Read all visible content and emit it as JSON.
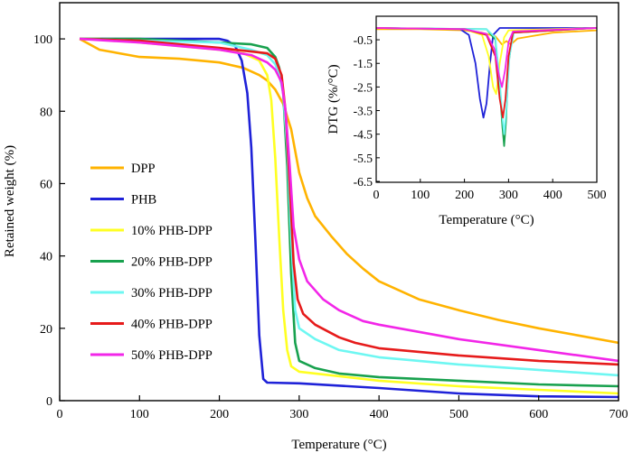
{
  "chart_data": [
    {
      "type": "line",
      "xlabel": "Temperature (°C)",
      "ylabel": "Retained weight (%)",
      "xlim": [
        0,
        700
      ],
      "ylim": [
        0,
        110
      ],
      "xticks": [
        "0",
        "100",
        "200",
        "300",
        "400",
        "500",
        "600",
        "700"
      ],
      "yticks": [
        "0",
        "20",
        "40",
        "60",
        "80",
        "100"
      ],
      "grid": false,
      "legend": "left",
      "series": [
        {
          "name": "DPP",
          "color": "#FFB300",
          "x": [
            25,
            50,
            100,
            150,
            200,
            230,
            250,
            260,
            270,
            280,
            290,
            300,
            310,
            320,
            340,
            360,
            380,
            400,
            450,
            500,
            550,
            600,
            650,
            700
          ],
          "y": [
            100,
            97,
            95,
            94.5,
            93.5,
            92,
            90,
            88.5,
            86,
            82,
            75,
            63,
            56,
            51,
            45.5,
            40.5,
            36.5,
            33,
            28,
            25,
            22.3,
            20,
            18,
            16
          ]
        },
        {
          "name": "PHB",
          "color": "#1F22D8",
          "x": [
            25,
            100,
            200,
            210,
            220,
            228,
            235,
            240,
            245,
            250,
            255,
            260,
            300,
            400,
            500,
            600,
            700
          ],
          "y": [
            100,
            100,
            100,
            99.5,
            98,
            94,
            85,
            70,
            45,
            18,
            6,
            5,
            4.8,
            3.5,
            2,
            1.2,
            1
          ]
        },
        {
          "name": "10% PHB-DPP",
          "color": "#FFFF22",
          "x": [
            25,
            50,
            100,
            150,
            200,
            230,
            250,
            260,
            265,
            270,
            275,
            280,
            285,
            290,
            300,
            400,
            500,
            600,
            700
          ],
          "y": [
            100,
            100,
            99,
            98,
            97,
            96,
            94,
            90,
            83,
            67,
            45,
            25,
            14,
            9.5,
            8,
            5.5,
            4,
            3,
            2
          ]
        },
        {
          "name": "20% PHB-DPP",
          "color": "#18A14E",
          "x": [
            25,
            100,
            200,
            240,
            260,
            270,
            275,
            280,
            285,
            290,
            295,
            300,
            320,
            350,
            400,
            500,
            600,
            700
          ],
          "y": [
            100,
            100,
            99,
            98.5,
            97.5,
            95,
            92,
            85,
            65,
            35,
            16,
            11,
            9,
            7.5,
            6.5,
            5.5,
            4.5,
            4
          ]
        },
        {
          "name": "30% PHB-DPP",
          "color": "#6EF7F2",
          "x": [
            25,
            100,
            200,
            240,
            260,
            270,
            275,
            280,
            285,
            290,
            295,
            300,
            320,
            350,
            400,
            500,
            600,
            700
          ],
          "y": [
            100,
            99.5,
            99,
            97,
            95.5,
            93,
            90,
            85,
            70,
            45,
            25,
            20,
            17,
            14,
            12,
            10,
            8.5,
            7
          ]
        },
        {
          "name": "40% PHB-DPP",
          "color": "#E61B1B",
          "x": [
            25,
            100,
            200,
            240,
            260,
            270,
            278,
            283,
            288,
            293,
            298,
            305,
            320,
            350,
            370,
            400,
            500,
            600,
            700
          ],
          "y": [
            100,
            99.5,
            97.5,
            96.5,
            96,
            94.5,
            90,
            80,
            60,
            38,
            28,
            24,
            21,
            17.5,
            16,
            14.5,
            12.5,
            11,
            10
          ]
        },
        {
          "name": "50% PHB-DPP",
          "color": "#F226E8",
          "x": [
            25,
            100,
            200,
            240,
            260,
            270,
            278,
            283,
            288,
            293,
            300,
            310,
            330,
            350,
            380,
            400,
            500,
            600,
            700
          ],
          "y": [
            100,
            99,
            97,
            95.5,
            93.5,
            91.5,
            88,
            80,
            65,
            48,
            39,
            33,
            28,
            25,
            22,
            21,
            17,
            14,
            11
          ]
        }
      ]
    },
    {
      "type": "line",
      "xlabel": "Temperature (°C)",
      "ylabel": "DTG (%/°C)",
      "xlim": [
        0,
        500
      ],
      "ylim": [
        -6.5,
        0.2
      ],
      "xticks": [
        "0",
        "100",
        "200",
        "300",
        "400",
        "500"
      ],
      "yticks": [
        "-0.5",
        "-1.5",
        "-2.5",
        "-3.5",
        "-4.5",
        "-5.5",
        "-6.5"
      ],
      "grid": false,
      "series": [
        {
          "name": "DPP",
          "color": "#FFB300",
          "x": [
            0,
            100,
            200,
            240,
            270,
            285,
            295,
            305,
            320,
            350,
            400,
            500
          ],
          "y": [
            -0.05,
            -0.05,
            -0.1,
            -0.2,
            -0.35,
            -0.7,
            -0.55,
            -0.7,
            -0.45,
            -0.35,
            -0.2,
            -0.1
          ]
        },
        {
          "name": "PHB",
          "color": "#1F22D8",
          "x": [
            0,
            190,
            210,
            225,
            235,
            243,
            250,
            258,
            265,
            280,
            500
          ],
          "y": [
            0,
            -0.05,
            -0.3,
            -1.5,
            -3,
            -3.8,
            -3.2,
            -1.5,
            -0.3,
            0,
            0
          ]
        },
        {
          "name": "10% PHB-DPP",
          "color": "#FFFF22",
          "x": [
            0,
            200,
            240,
            255,
            265,
            272,
            280,
            290,
            300,
            500
          ],
          "y": [
            0,
            -0.05,
            -0.3,
            -1.2,
            -2.5,
            -2.8,
            -1.5,
            -0.4,
            -0.1,
            0
          ]
        },
        {
          "name": "20% PHB-DPP",
          "color": "#18A14E",
          "x": [
            0,
            250,
            270,
            280,
            286,
            290,
            294,
            300,
            310,
            500
          ],
          "y": [
            0,
            -0.05,
            -0.5,
            -2.5,
            -4.2,
            -5,
            -4,
            -1.5,
            -0.2,
            0
          ]
        },
        {
          "name": "30% PHB-DPP",
          "color": "#6EF7F2",
          "x": [
            0,
            250,
            270,
            280,
            286,
            290,
            295,
            302,
            312,
            500
          ],
          "y": [
            0,
            -0.05,
            -0.4,
            -2.2,
            -3.8,
            -4.5,
            -3.4,
            -1.2,
            -0.2,
            0
          ]
        },
        {
          "name": "40% PHB-DPP",
          "color": "#E61B1B",
          "x": [
            0,
            200,
            250,
            270,
            280,
            287,
            293,
            300,
            310,
            500
          ],
          "y": [
            0,
            -0.05,
            -0.3,
            -1.2,
            -3,
            -3.8,
            -3,
            -1.2,
            -0.2,
            0
          ]
        },
        {
          "name": "50% PHB-DPP",
          "color": "#F226E8",
          "x": [
            0,
            200,
            250,
            268,
            278,
            285,
            292,
            300,
            310,
            500
          ],
          "y": [
            0,
            -0.05,
            -0.25,
            -0.9,
            -2,
            -2.5,
            -1.8,
            -0.6,
            -0.15,
            0
          ]
        }
      ]
    }
  ]
}
